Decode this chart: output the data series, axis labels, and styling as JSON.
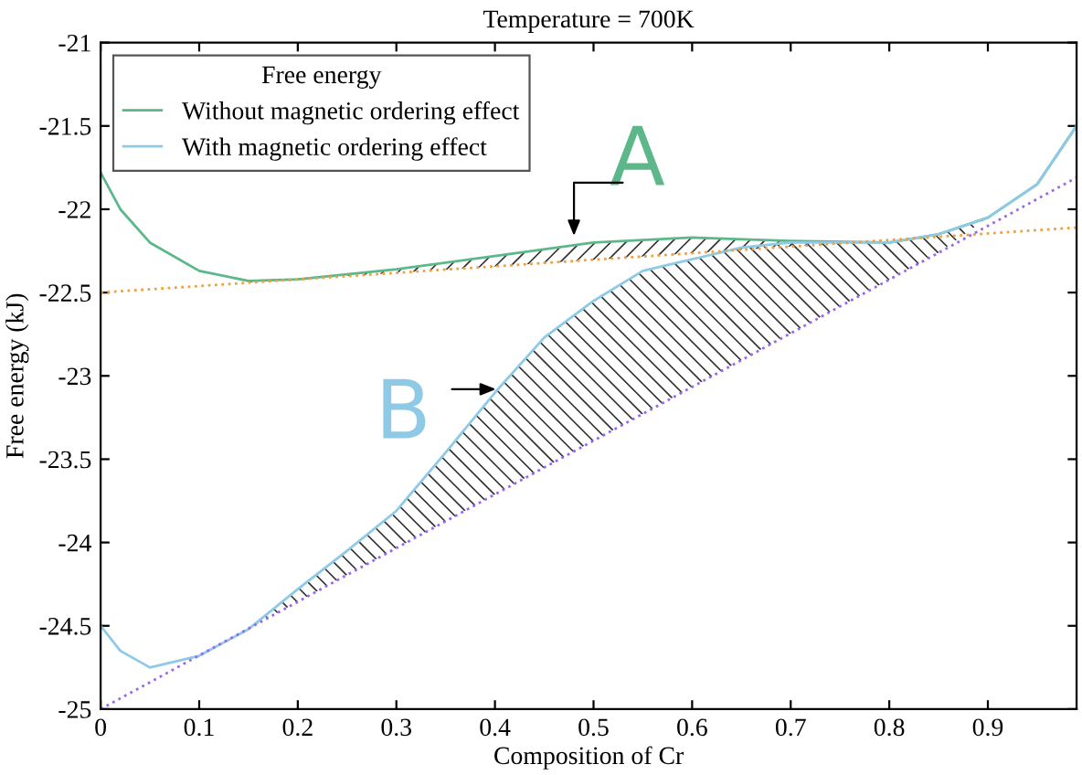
{
  "chart_data": {
    "type": "line",
    "title": "Temperature = 700K",
    "xlabel": "Composition of Cr",
    "ylabel": "Free energy (kJ)",
    "legend_title": "Free energy",
    "legend": "top left",
    "grid": false,
    "marker": "none",
    "xlim": [
      0,
      0.99
    ],
    "ylim": [
      -25,
      -21
    ],
    "xticks": [
      0,
      0.1,
      0.2,
      0.3,
      0.4,
      0.5,
      0.6,
      0.7,
      0.8,
      0.9
    ],
    "yticks": [
      -25,
      -24.5,
      -24,
      -23.5,
      -23,
      -22.5,
      -22,
      -21.5,
      -21
    ],
    "series": [
      {
        "name": "Without magnetic ordering effect",
        "color": "#5cb88a",
        "line_style": "solid",
        "x": [
          0,
          0.02,
          0.05,
          0.1,
          0.15,
          0.2,
          0.3,
          0.4,
          0.5,
          0.6,
          0.7,
          0.8,
          0.85,
          0.9,
          0.95,
          0.99
        ],
        "values": [
          -21.78,
          -22.0,
          -22.2,
          -22.37,
          -22.43,
          -22.42,
          -22.36,
          -22.28,
          -22.2,
          -22.17,
          -22.19,
          -22.2,
          -22.15,
          -22.05,
          -21.85,
          -21.5
        ]
      },
      {
        "name": "With magnetic ordering effect",
        "color": "#8ecae6",
        "line_style": "solid",
        "x": [
          0,
          0.02,
          0.05,
          0.1,
          0.15,
          0.2,
          0.25,
          0.3,
          0.35,
          0.4,
          0.45,
          0.5,
          0.55,
          0.6,
          0.65,
          0.7,
          0.8,
          0.85,
          0.9,
          0.95,
          0.99
        ],
        "values": [
          -24.5,
          -24.65,
          -24.75,
          -24.68,
          -24.52,
          -24.28,
          -24.05,
          -23.81,
          -23.46,
          -23.1,
          -22.77,
          -22.55,
          -22.37,
          -22.3,
          -22.23,
          -22.2,
          -22.2,
          -22.15,
          -22.05,
          -21.85,
          -21.5
        ]
      },
      {
        "color": "#f0a040",
        "line_style": "dotted",
        "x": [
          0,
          0.99
        ],
        "values": [
          -22.5,
          -22.11
        ]
      },
      {
        "color": "#9966ee",
        "line_style": "dotted",
        "x": [
          0,
          0.99
        ],
        "values": [
          -25,
          -21.81
        ]
      }
    ],
    "annotations": [
      "A",
      "B"
    ]
  }
}
